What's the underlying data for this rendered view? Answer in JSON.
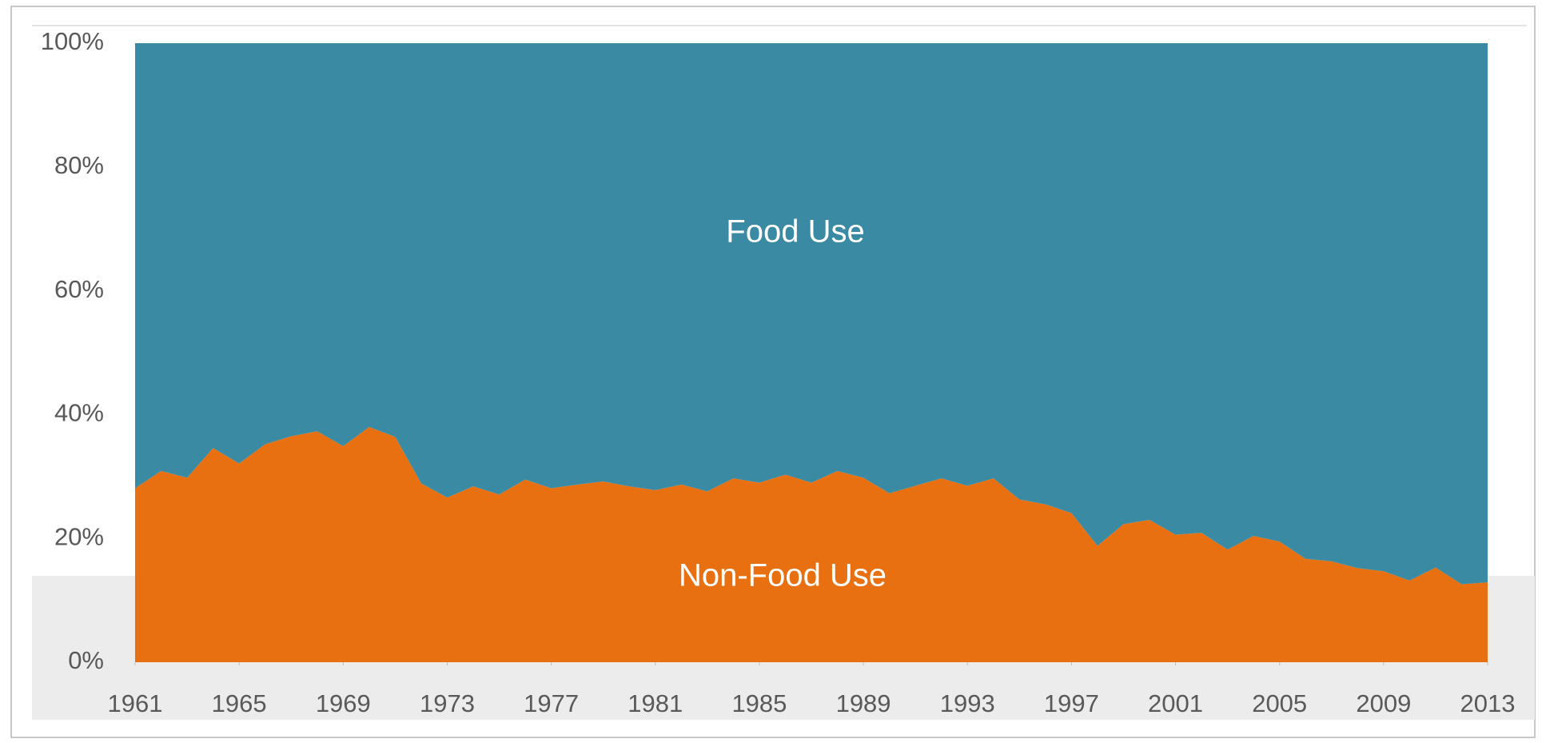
{
  "chart_data": {
    "type": "stacked_area_percent",
    "x": [
      1961,
      1962,
      1963,
      1964,
      1965,
      1966,
      1967,
      1968,
      1969,
      1970,
      1971,
      1972,
      1973,
      1974,
      1975,
      1976,
      1977,
      1978,
      1979,
      1980,
      1981,
      1982,
      1983,
      1984,
      1985,
      1986,
      1987,
      1988,
      1989,
      1990,
      1991,
      1992,
      1993,
      1994,
      1995,
      1996,
      1997,
      1998,
      1999,
      2000,
      2001,
      2002,
      2003,
      2004,
      2005,
      2006,
      2007,
      2008,
      2009,
      2010,
      2011,
      2012,
      2013
    ],
    "series": [
      {
        "name": "Non-Food Use",
        "color": "#e87011",
        "values": [
          28.1,
          30.9,
          29.8,
          34.6,
          32.1,
          35.2,
          36.5,
          37.3,
          34.9,
          38.0,
          36.4,
          28.9,
          26.6,
          28.4,
          27.1,
          29.5,
          28.1,
          28.7,
          29.2,
          28.4,
          27.8,
          28.7,
          27.6,
          29.7,
          29.0,
          30.3,
          29.0,
          30.9,
          29.8,
          27.3,
          28.5,
          29.7,
          28.5,
          29.7,
          26.3,
          25.5,
          24.1,
          18.8,
          22.3,
          23.0,
          20.6,
          20.9,
          18.2,
          20.4,
          19.5,
          16.7,
          16.3,
          15.2,
          14.7,
          13.2,
          15.3,
          12.6,
          12.9
        ]
      },
      {
        "name": "Food Use",
        "color": "#3a8aa3",
        "values": [
          71.9,
          69.1,
          70.2,
          65.4,
          67.9,
          64.8,
          63.5,
          62.7,
          65.1,
          62.0,
          63.6,
          71.1,
          73.4,
          71.6,
          72.9,
          70.5,
          71.9,
          71.3,
          70.8,
          71.6,
          72.2,
          71.3,
          72.4,
          70.3,
          71.0,
          69.7,
          71.0,
          69.1,
          70.2,
          72.7,
          71.5,
          70.3,
          71.5,
          70.3,
          73.7,
          74.5,
          75.9,
          81.2,
          77.7,
          77.0,
          79.4,
          79.1,
          81.8,
          79.6,
          80.5,
          83.3,
          83.7,
          84.8,
          85.3,
          86.8,
          84.7,
          87.4,
          87.1
        ]
      }
    ],
    "xlim": [
      1961,
      2013
    ],
    "xticks": [
      1961,
      1965,
      1969,
      1973,
      1977,
      1981,
      1985,
      1989,
      1993,
      1997,
      2001,
      2005,
      2009,
      2013
    ],
    "ylim": [
      0,
      100
    ],
    "yticks": [
      {
        "value": 0,
        "label": "0%"
      },
      {
        "value": 20,
        "label": "20%"
      },
      {
        "value": 40,
        "label": "40%"
      },
      {
        "value": 60,
        "label": "60%"
      },
      {
        "value": 80,
        "label": "80%"
      },
      {
        "value": 100,
        "label": "100%"
      }
    ]
  }
}
